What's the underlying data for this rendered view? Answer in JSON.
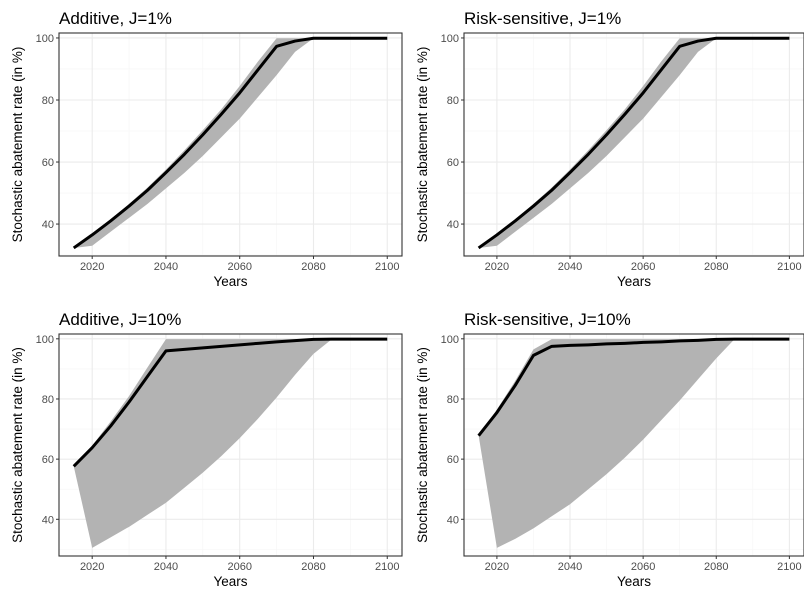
{
  "chart_data": [
    {
      "type": "area",
      "title": "Additive, J=1%",
      "xlabel": "Years",
      "ylabel": "Stochastic abatement rate (in %)",
      "xlim": [
        2011,
        2104
      ],
      "ylim": [
        29.7,
        101.6
      ],
      "xticks": [
        2020,
        2040,
        2060,
        2080,
        2100
      ],
      "yticks": [
        40,
        60,
        80,
        100
      ],
      "grid": true,
      "series": [
        {
          "kind": "line",
          "x": [
            2015,
            2020,
            2025,
            2030,
            2035,
            2040,
            2045,
            2050,
            2055,
            2060,
            2065,
            2070,
            2075,
            2080,
            2085,
            2090,
            2095,
            2100
          ],
          "y": [
            32.3,
            36.5,
            41.0,
            45.8,
            50.9,
            56.6,
            62.5,
            68.8,
            75.4,
            82.3,
            89.8,
            97.3,
            99.0,
            99.9,
            99.9,
            99.9,
            99.9,
            99.9
          ]
        },
        {
          "kind": "band",
          "x": [
            2015,
            2020,
            2025,
            2030,
            2035,
            2040,
            2045,
            2050,
            2055,
            2060,
            2065,
            2070,
            2075,
            2080,
            2085,
            2090,
            2095,
            2100
          ],
          "low": [
            32.3,
            33.0,
            37.5,
            42.0,
            46.5,
            51.5,
            56.5,
            62.0,
            68.0,
            74.0,
            81.0,
            88.0,
            95.5,
            99.9,
            99.9,
            99.9,
            99.9,
            99.9
          ],
          "high": [
            32.3,
            36.8,
            41.5,
            46.5,
            51.8,
            57.6,
            63.8,
            70.3,
            77.0,
            84.5,
            92.5,
            99.9,
            99.9,
            99.9,
            99.9,
            99.9,
            99.9,
            99.9
          ]
        }
      ]
    },
    {
      "type": "area",
      "title": "Risk-sensitive, J=1%",
      "xlabel": "Years",
      "ylabel": "Stochastic abatement rate (in %)",
      "xlim": [
        2011,
        2104
      ],
      "ylim": [
        29.7,
        101.6
      ],
      "xticks": [
        2020,
        2040,
        2060,
        2080,
        2100
      ],
      "yticks": [
        40,
        60,
        80,
        100
      ],
      "grid": true,
      "series": [
        {
          "kind": "line",
          "x": [
            2015,
            2020,
            2025,
            2030,
            2035,
            2040,
            2045,
            2050,
            2055,
            2060,
            2065,
            2070,
            2075,
            2080,
            2085,
            2090,
            2095,
            2100
          ],
          "y": [
            32.3,
            36.5,
            41.0,
            45.8,
            50.9,
            56.6,
            62.5,
            68.8,
            75.4,
            82.3,
            89.8,
            97.3,
            99.0,
            99.9,
            99.9,
            99.9,
            99.9,
            99.9
          ]
        },
        {
          "kind": "band",
          "x": [
            2015,
            2020,
            2025,
            2030,
            2035,
            2040,
            2045,
            2050,
            2055,
            2060,
            2065,
            2070,
            2075,
            2080,
            2085,
            2090,
            2095,
            2100
          ],
          "low": [
            32.3,
            33.0,
            37.5,
            42.0,
            46.5,
            51.5,
            56.5,
            62.0,
            68.0,
            74.0,
            81.0,
            88.0,
            95.5,
            99.9,
            99.9,
            99.9,
            99.9,
            99.9
          ],
          "high": [
            32.3,
            36.8,
            41.5,
            46.5,
            51.8,
            57.6,
            63.8,
            70.3,
            77.0,
            84.5,
            92.5,
            99.9,
            99.9,
            99.9,
            99.9,
            99.9,
            99.9,
            99.9
          ]
        }
      ]
    },
    {
      "type": "area",
      "title": "Additive, J=10%",
      "xlabel": "Years",
      "ylabel": "Stochastic abatement rate (in %)",
      "xlim": [
        2011,
        2104
      ],
      "ylim": [
        27.8,
        101.6
      ],
      "xticks": [
        2020,
        2040,
        2060,
        2080,
        2100
      ],
      "yticks": [
        40,
        60,
        80,
        100
      ],
      "grid": true,
      "series": [
        {
          "kind": "line",
          "x": [
            2015,
            2020,
            2025,
            2030,
            2035,
            2040,
            2045,
            2050,
            2055,
            2060,
            2065,
            2070,
            2075,
            2080,
            2085,
            2090,
            2095,
            2100
          ],
          "y": [
            57.6,
            63.8,
            71.0,
            79.0,
            87.5,
            96.0,
            96.5,
            97.0,
            97.5,
            98.0,
            98.5,
            99.0,
            99.4,
            99.8,
            99.9,
            99.9,
            99.9,
            99.9
          ]
        },
        {
          "kind": "band",
          "x": [
            2015,
            2020,
            2025,
            2030,
            2035,
            2040,
            2045,
            2050,
            2055,
            2060,
            2065,
            2070,
            2075,
            2080,
            2085,
            2090,
            2095,
            2100
          ],
          "low": [
            57.6,
            30.5,
            34.0,
            37.5,
            41.5,
            45.5,
            50.5,
            55.5,
            61.0,
            67.0,
            73.5,
            80.5,
            88.0,
            95.0,
            99.9,
            99.9,
            99.9,
            99.9
          ],
          "high": [
            57.6,
            64.5,
            72.5,
            81.0,
            90.5,
            99.9,
            99.9,
            99.9,
            99.9,
            99.9,
            99.9,
            99.9,
            99.9,
            99.9,
            99.9,
            99.9,
            99.9,
            99.9
          ]
        }
      ]
    },
    {
      "type": "area",
      "title": "Risk-sensitive, J=10%",
      "xlabel": "Years",
      "ylabel": "Stochastic abatement rate (in %)",
      "xlim": [
        2011,
        2104
      ],
      "ylim": [
        27.8,
        101.6
      ],
      "xticks": [
        2020,
        2040,
        2060,
        2080,
        2100
      ],
      "yticks": [
        40,
        60,
        80,
        100
      ],
      "grid": true,
      "series": [
        {
          "kind": "line",
          "x": [
            2015,
            2020,
            2025,
            2030,
            2035,
            2040,
            2045,
            2050,
            2055,
            2060,
            2065,
            2070,
            2075,
            2080,
            2085,
            2090,
            2095,
            2100
          ],
          "y": [
            67.8,
            75.5,
            84.5,
            94.5,
            97.5,
            97.8,
            98.0,
            98.3,
            98.5,
            98.8,
            99.0,
            99.3,
            99.5,
            99.8,
            99.9,
            99.9,
            99.9,
            99.9
          ]
        },
        {
          "kind": "band",
          "x": [
            2015,
            2020,
            2025,
            2030,
            2035,
            2040,
            2045,
            2050,
            2055,
            2060,
            2065,
            2070,
            2075,
            2080,
            2085,
            2090,
            2095,
            2100
          ],
          "low": [
            67.8,
            30.5,
            33.5,
            37.0,
            41.0,
            45.0,
            50.0,
            55.0,
            60.5,
            66.5,
            73.0,
            79.5,
            86.5,
            93.5,
            99.9,
            99.9,
            99.9,
            99.9
          ],
          "high": [
            67.8,
            76.5,
            86.0,
            96.5,
            99.9,
            99.9,
            99.9,
            99.9,
            99.9,
            99.9,
            99.9,
            99.9,
            99.9,
            99.9,
            99.9,
            99.9,
            99.9,
            99.9
          ]
        }
      ]
    }
  ],
  "colors": {
    "band": "#b3b3b3",
    "line": "#000000",
    "grid_major": "#ebebeb",
    "grid_minor": "#f5f5f5",
    "panel_border": "#333333",
    "tick_label": "#4d4d4d"
  }
}
